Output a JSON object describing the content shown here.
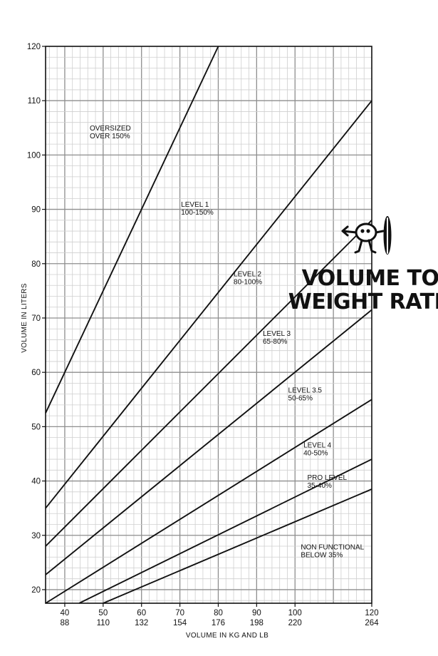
{
  "chart_data": {
    "type": "line",
    "title": "VOLUME TO WEIGHT RATIO",
    "xlabel": "VOLUME IN KG AND LB",
    "ylabel": "VOLUME IN LITERS",
    "xlim": [
      35,
      120
    ],
    "ylim": [
      17.5,
      120
    ],
    "grid": true,
    "x_ticks_kg": [
      "40",
      "50",
      "60",
      "70",
      "80",
      "90",
      "100",
      "120"
    ],
    "x_ticks_lb": [
      "88",
      "110",
      "132",
      "154",
      "176",
      "198",
      "220",
      "264"
    ],
    "y_ticks": [
      "20",
      "30",
      "40",
      "50",
      "60",
      "70",
      "80",
      "90",
      "100",
      "110",
      "120"
    ],
    "series": [
      {
        "x": [
          35,
          80
        ],
        "y": [
          52.5,
          120
        ]
      },
      {
        "x": [
          35,
          120
        ],
        "y": [
          35,
          110
        ]
      },
      {
        "x": [
          35,
          120
        ],
        "y": [
          28,
          88
        ]
      },
      {
        "x": [
          35,
          120
        ],
        "y": [
          22.75,
          71.5
        ]
      },
      {
        "x": [
          35,
          120
        ],
        "y": [
          17.5,
          55
        ]
      },
      {
        "x": [
          43.75,
          120
        ],
        "y": [
          17.5,
          44
        ]
      },
      {
        "x": [
          50,
          120
        ],
        "y": [
          17.5,
          38.5
        ]
      }
    ],
    "zones": [
      {
        "line1": "OVERSIZED",
        "line2": "OVER 150%",
        "x": 46.5,
        "y": 104.5
      },
      {
        "line1": "LEVEL 1",
        "line2": "100-150%",
        "x": 70.3,
        "y": 90.5
      },
      {
        "line1": "LEVEL 2",
        "line2": "80-100%",
        "x": 84,
        "y": 77.7
      },
      {
        "line1": "LEVEL 3",
        "line2": "65-80%",
        "x": 91.6,
        "y": 66.7
      },
      {
        "line1": "LEVEL 3.5",
        "line2": "50-65%",
        "x": 98.2,
        "y": 56.3
      },
      {
        "line1": "LEVEL 4",
        "line2": "40-50%",
        "x": 102.2,
        "y": 46.2
      },
      {
        "line1": "PRO LEVEL",
        "line2": "35-40%",
        "x": 103.2,
        "y": 40.2
      },
      {
        "line1": "NON FUNCTIONAL",
        "line2": "BELOW 35%",
        "x": 101.5,
        "y": 27.4
      }
    ]
  },
  "brand": {
    "icon": "surfer-mascot-icon"
  }
}
